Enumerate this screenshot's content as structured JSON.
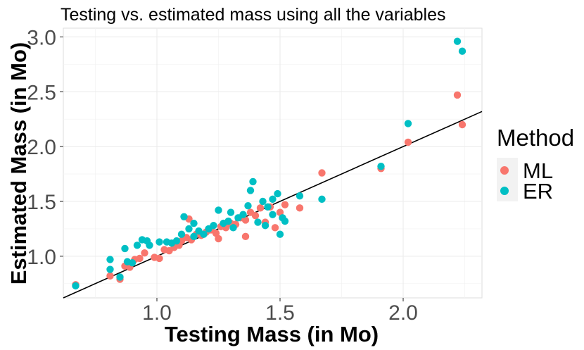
{
  "chart_data": {
    "type": "scatter",
    "title": "Testing vs. estimated mass using all the variables",
    "xlabel": "Testing Mass (in Mo)",
    "ylabel": "Estimated Mass (in Mo)",
    "xlim": [
      0.62,
      2.32
    ],
    "ylim": [
      0.62,
      3.08
    ],
    "x_ticks": [
      1.0,
      1.5,
      2.0
    ],
    "x_tick_labels": [
      "1.0",
      "1.5",
      "2.0"
    ],
    "y_ticks": [
      1.0,
      1.5,
      2.0,
      2.5,
      3.0
    ],
    "y_tick_labels": [
      "1.0",
      "1.5",
      "2.0",
      "2.5",
      "3.0"
    ],
    "grid": true,
    "legend": {
      "title": "Method",
      "position": "right"
    },
    "reference_line": {
      "label": "y = x",
      "slope": 1,
      "intercept": 0,
      "color": "#000000"
    },
    "series": [
      {
        "name": "ML",
        "color": "#F8766D",
        "points": [
          [
            0.67,
            0.74
          ],
          [
            0.81,
            0.82
          ],
          [
            0.85,
            0.79
          ],
          [
            0.87,
            0.91
          ],
          [
            0.89,
            0.9
          ],
          [
            0.91,
            0.97
          ],
          [
            0.93,
            0.98
          ],
          [
            0.95,
            1.03
          ],
          [
            0.99,
            0.99
          ],
          [
            1.01,
            0.98
          ],
          [
            1.03,
            1.06
          ],
          [
            1.05,
            1.05
          ],
          [
            1.07,
            1.08
          ],
          [
            1.09,
            1.1
          ],
          [
            1.1,
            1.14
          ],
          [
            1.12,
            1.17
          ],
          [
            1.14,
            1.15
          ],
          [
            1.16,
            1.2
          ],
          [
            1.18,
            1.19
          ],
          [
            1.2,
            1.22
          ],
          [
            1.22,
            1.24
          ],
          [
            1.24,
            1.21
          ],
          [
            1.26,
            1.27
          ],
          [
            1.28,
            1.26
          ],
          [
            1.3,
            1.3
          ],
          [
            1.32,
            1.29
          ],
          [
            1.34,
            1.35
          ],
          [
            1.36,
            1.33
          ],
          [
            1.38,
            1.4
          ],
          [
            1.4,
            1.37
          ],
          [
            1.42,
            1.44
          ],
          [
            1.44,
            1.31
          ],
          [
            1.46,
            1.45
          ],
          [
            1.48,
            1.26
          ],
          [
            1.5,
            1.4
          ],
          [
            1.52,
            1.47
          ],
          [
            1.58,
            1.44
          ],
          [
            1.67,
            1.76
          ],
          [
            1.91,
            1.8
          ],
          [
            2.02,
            2.04
          ],
          [
            2.22,
            2.47
          ],
          [
            2.24,
            2.2
          ],
          [
            1.13,
            1.34
          ],
          [
            1.25,
            1.16
          ],
          [
            1.36,
            1.18
          ]
        ]
      },
      {
        "name": "ER",
        "color": "#00BFC4",
        "points": [
          [
            0.67,
            0.73
          ],
          [
            0.81,
            0.88
          ],
          [
            0.81,
            0.97
          ],
          [
            0.85,
            0.81
          ],
          [
            0.87,
            1.07
          ],
          [
            0.88,
            0.95
          ],
          [
            0.9,
            0.94
          ],
          [
            0.92,
            1.1
          ],
          [
            0.94,
            1.15
          ],
          [
            0.96,
            1.14
          ],
          [
            0.97,
            1.1
          ],
          [
            1.01,
            1.13
          ],
          [
            1.04,
            1.13
          ],
          [
            1.06,
            1.12
          ],
          [
            1.08,
            1.14
          ],
          [
            1.1,
            1.2
          ],
          [
            1.11,
            1.36
          ],
          [
            1.13,
            1.25
          ],
          [
            1.15,
            1.18
          ],
          [
            1.17,
            1.23
          ],
          [
            1.19,
            1.2
          ],
          [
            1.21,
            1.25
          ],
          [
            1.23,
            1.28
          ],
          [
            1.25,
            1.42
          ],
          [
            1.27,
            1.3
          ],
          [
            1.29,
            1.32
          ],
          [
            1.31,
            1.26
          ],
          [
            1.33,
            1.35
          ],
          [
            1.35,
            1.38
          ],
          [
            1.37,
            1.46
          ],
          [
            1.38,
            1.6
          ],
          [
            1.39,
            1.68
          ],
          [
            1.41,
            1.31
          ],
          [
            1.43,
            1.5
          ],
          [
            1.45,
            1.45
          ],
          [
            1.47,
            1.52
          ],
          [
            1.49,
            1.57
          ],
          [
            1.5,
            1.2
          ],
          [
            1.51,
            1.35
          ],
          [
            1.52,
            1.32
          ],
          [
            1.58,
            1.55
          ],
          [
            1.67,
            1.52
          ],
          [
            1.91,
            1.82
          ],
          [
            2.02,
            2.21
          ],
          [
            2.22,
            2.96
          ],
          [
            2.24,
            2.87
          ],
          [
            1.3,
            1.4
          ],
          [
            1.15,
            1.3
          ],
          [
            1.44,
            1.28
          ],
          [
            1.47,
            1.38
          ]
        ]
      }
    ]
  }
}
